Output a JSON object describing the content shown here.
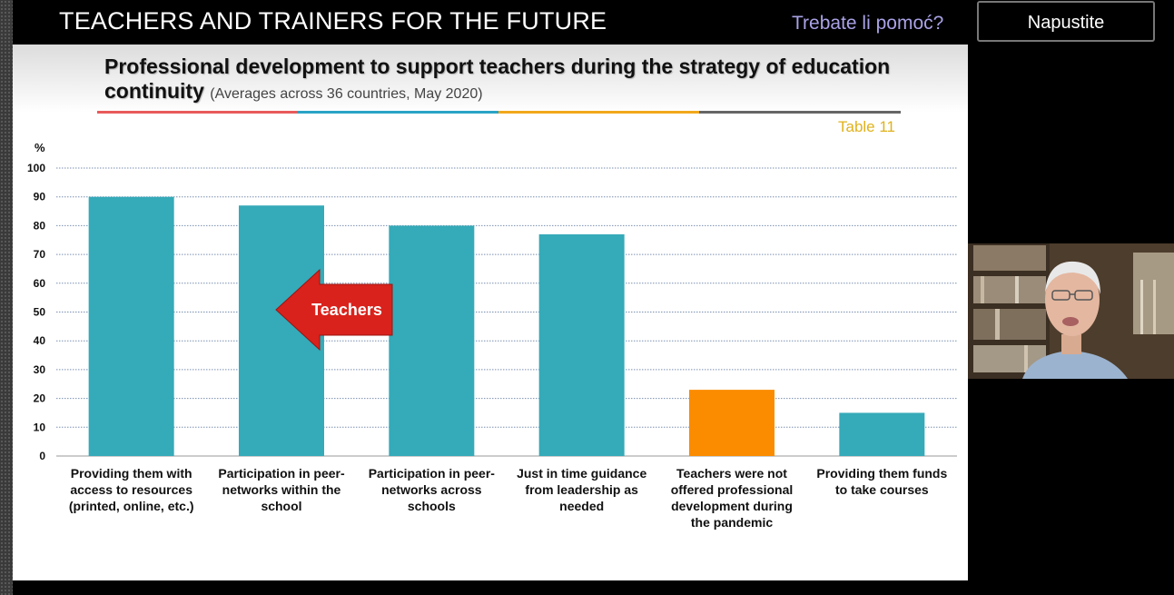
{
  "meeting": {
    "title": "TEACHERS AND TRAINERS FOR THE FUTURE",
    "help_link": "Trebate li pomoć?",
    "leave_button": "Napustite"
  },
  "slide": {
    "title_main": "Professional development to support teachers during the strategy of education continuity",
    "title_sub": "(Averages across 36 countries, May 2020)",
    "table_label": "Table 11",
    "arrow_label": "Teachers",
    "divider_colors": [
      "#e85a5a",
      "#2aa3c5",
      "#f2a81c",
      "#666666"
    ]
  },
  "chart_data": {
    "type": "bar",
    "ylabel": "%",
    "ylim": [
      0,
      100
    ],
    "yticks": [
      0,
      10,
      20,
      30,
      40,
      50,
      60,
      70,
      80,
      90,
      100
    ],
    "grid": true,
    "categories": [
      "Providing them with access to resources (printed, online, etc.)",
      "Participation in peer-networks within the school",
      "Participation in peer-networks across schools",
      "Just in time guidance from leadership as needed",
      "Teachers were not offered professional development during the pandemic",
      "Providing them funds to take courses"
    ],
    "category_lines": [
      [
        "Providing them with",
        "access to resources",
        "(printed, online, etc.)"
      ],
      [
        "Participation in peer-",
        "networks within the",
        "school"
      ],
      [
        "Participation in peer-",
        "networks across",
        "schools"
      ],
      [
        "Just in time guidance",
        "from leadership as",
        "needed"
      ],
      [
        "Teachers were not",
        "offered professional",
        "development during",
        "the pandemic"
      ],
      [
        "Providing them funds",
        "to take courses"
      ]
    ],
    "values": [
      90,
      87,
      80,
      77,
      23,
      15
    ],
    "colors": [
      "#35aab8",
      "#35aab8",
      "#35aab8",
      "#35aab8",
      "#fb8c00",
      "#35aab8"
    ]
  }
}
